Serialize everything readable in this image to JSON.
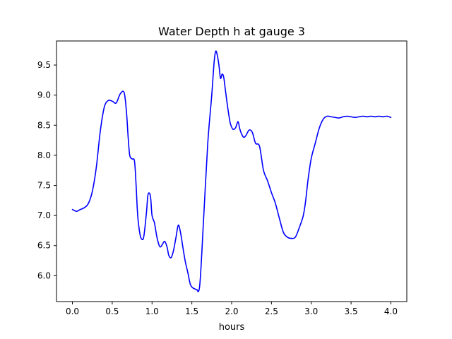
{
  "chart_data": {
    "type": "line",
    "title": "Water Depth h at gauge 3",
    "xlabel": "hours",
    "ylabel": "",
    "xlim": [
      -0.2,
      4.2
    ],
    "ylim": [
      5.57,
      9.9
    ],
    "grid": false,
    "xticks": [
      0.0,
      0.5,
      1.0,
      1.5,
      2.0,
      2.5,
      3.0,
      3.5,
      4.0
    ],
    "xtick_labels": [
      "0.0",
      "0.5",
      "1.0",
      "1.5",
      "2.0",
      "2.5",
      "3.0",
      "3.5",
      "4.0"
    ],
    "yticks": [
      6.0,
      6.5,
      7.0,
      7.5,
      8.0,
      8.5,
      9.0,
      9.5
    ],
    "ytick_labels": [
      "6.0",
      "6.5",
      "7.0",
      "7.5",
      "8.0",
      "8.5",
      "9.0",
      "9.5"
    ],
    "series": [
      {
        "color": "#0000ff",
        "x": [
          0.0,
          0.05,
          0.1,
          0.15,
          0.2,
          0.25,
          0.3,
          0.35,
          0.4,
          0.45,
          0.5,
          0.55,
          0.6,
          0.65,
          0.68,
          0.7,
          0.72,
          0.75,
          0.78,
          0.8,
          0.82,
          0.85,
          0.88,
          0.9,
          0.93,
          0.95,
          0.98,
          1.0,
          1.03,
          1.06,
          1.09,
          1.11,
          1.13,
          1.16,
          1.19,
          1.21,
          1.24,
          1.27,
          1.3,
          1.33,
          1.36,
          1.39,
          1.42,
          1.45,
          1.48,
          1.51,
          1.54,
          1.56,
          1.6,
          1.65,
          1.7,
          1.75,
          1.78,
          1.8,
          1.82,
          1.84,
          1.86,
          1.88,
          1.9,
          1.92,
          1.95,
          1.98,
          2.0,
          2.02,
          2.05,
          2.08,
          2.1,
          2.12,
          2.15,
          2.18,
          2.22,
          2.26,
          2.3,
          2.35,
          2.4,
          2.45,
          2.5,
          2.55,
          2.6,
          2.65,
          2.7,
          2.75,
          2.8,
          2.85,
          2.9,
          2.93,
          2.96,
          3.0,
          3.05,
          3.1,
          3.15,
          3.2,
          3.25,
          3.3,
          3.35,
          3.4,
          3.45,
          3.5,
          3.55,
          3.6,
          3.65,
          3.7,
          3.75,
          3.8,
          3.85,
          3.9,
          3.95,
          4.0
        ],
        "values": [
          7.1,
          7.07,
          7.1,
          7.13,
          7.2,
          7.4,
          7.8,
          8.4,
          8.8,
          8.91,
          8.9,
          8.87,
          9.02,
          9.04,
          8.7,
          8.3,
          8.0,
          7.94,
          7.9,
          7.5,
          7.0,
          6.68,
          6.6,
          6.68,
          7.05,
          7.35,
          7.32,
          7.0,
          6.88,
          6.65,
          6.5,
          6.48,
          6.52,
          6.57,
          6.47,
          6.34,
          6.3,
          6.42,
          6.63,
          6.84,
          6.7,
          6.45,
          6.22,
          6.05,
          5.86,
          5.8,
          5.78,
          5.77,
          5.85,
          7.0,
          8.2,
          9.0,
          9.55,
          9.73,
          9.66,
          9.5,
          9.28,
          9.35,
          9.3,
          9.1,
          8.8,
          8.55,
          8.47,
          8.43,
          8.46,
          8.56,
          8.45,
          8.37,
          8.3,
          8.33,
          8.42,
          8.38,
          8.2,
          8.15,
          7.75,
          7.58,
          7.38,
          7.2,
          6.95,
          6.72,
          6.64,
          6.62,
          6.64,
          6.8,
          7.0,
          7.25,
          7.6,
          7.95,
          8.2,
          8.45,
          8.6,
          8.65,
          8.64,
          8.63,
          8.62,
          8.64,
          8.65,
          8.64,
          8.63,
          8.64,
          8.65,
          8.64,
          8.65,
          8.64,
          8.65,
          8.64,
          8.65,
          8.63
        ]
      }
    ]
  }
}
